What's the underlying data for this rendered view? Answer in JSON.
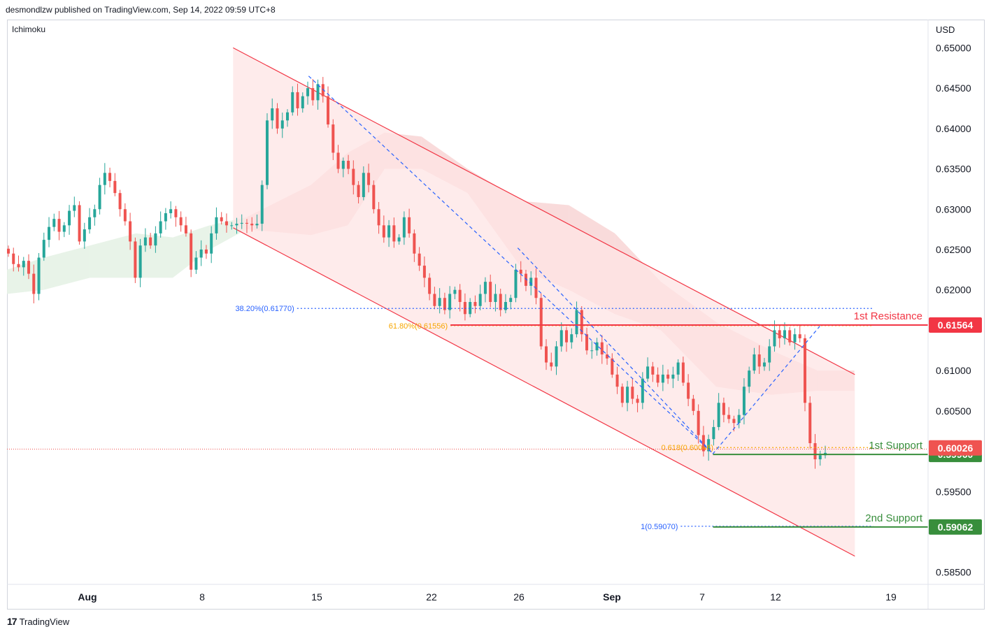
{
  "header": {
    "publisher": "desmondlzw published on TradingView.com, Sep 14, 2022 09:59 UTC+8",
    "indicator": "Ichimoku",
    "currency": "USD"
  },
  "footer": {
    "logo_mark": "17",
    "brand": "TradingView"
  },
  "colors": {
    "bull": "#26a69a",
    "bear": "#ef5350",
    "channel_fill": "#fde4e4",
    "channel_line": "#f23645",
    "resistance": "#f23645",
    "support": "#388e3c",
    "fib_blue": "#2962ff",
    "fib_orange": "#f7a600"
  },
  "chart_data": {
    "type": "candlestick",
    "title": "",
    "xlabel": "",
    "ylabel": "USD",
    "ylim": [
      0.5835,
      0.6535
    ],
    "grid": false,
    "y_ticks": [
      "0.65000",
      "0.64500",
      "0.64000",
      "0.63500",
      "0.63000",
      "0.62500",
      "0.62000",
      "0.61000",
      "0.60500",
      "0.59500",
      "0.58500"
    ],
    "x_ticks": [
      {
        "label": "Aug",
        "bold": true
      },
      {
        "label": "8",
        "bold": false
      },
      {
        "label": "15",
        "bold": false
      },
      {
        "label": "22",
        "bold": false
      },
      {
        "label": "26",
        "bold": false
      },
      {
        "label": "Sep",
        "bold": true
      },
      {
        "label": "7",
        "bold": false
      },
      {
        "label": "12",
        "bold": false
      },
      {
        "label": "19",
        "bold": false
      }
    ],
    "close_path": [
      0.6245,
      0.6232,
      0.6228,
      0.6236,
      0.622,
      0.6195,
      0.624,
      0.6262,
      0.6278,
      0.6288,
      0.6272,
      0.628,
      0.6298,
      0.6305,
      0.626,
      0.6275,
      0.629,
      0.63,
      0.633,
      0.6345,
      0.6335,
      0.632,
      0.63,
      0.6285,
      0.626,
      0.6215,
      0.6255,
      0.6265,
      0.6255,
      0.627,
      0.6285,
      0.6295,
      0.63,
      0.629,
      0.628,
      0.627,
      0.6225,
      0.624,
      0.625,
      0.6245,
      0.627,
      0.629,
      0.6285,
      0.628,
      0.628,
      0.6282,
      0.6283,
      0.6282,
      0.628,
      0.6282,
      0.633,
      0.641,
      0.6425,
      0.64,
      0.641,
      0.642,
      0.6445,
      0.6425,
      0.644,
      0.645,
      0.6435,
      0.6455,
      0.644,
      0.6405,
      0.637,
      0.635,
      0.636,
      0.635,
      0.633,
      0.6315,
      0.6345,
      0.633,
      0.63,
      0.628,
      0.6265,
      0.628,
      0.626,
      0.6265,
      0.629,
      0.627,
      0.6245,
      0.623,
      0.6215,
      0.6195,
      0.618,
      0.619,
      0.6175,
      0.6195,
      0.62,
      0.6185,
      0.617,
      0.6185,
      0.618,
      0.6195,
      0.621,
      0.6185,
      0.6195,
      0.6175,
      0.6185,
      0.619,
      0.6225,
      0.622,
      0.6205,
      0.6215,
      0.619,
      0.613,
      0.611,
      0.6105,
      0.613,
      0.615,
      0.6135,
      0.6145,
      0.6175,
      0.6145,
      0.6125,
      0.6125,
      0.6135,
      0.612,
      0.6115,
      0.6095,
      0.608,
      0.606,
      0.608,
      0.6065,
      0.606,
      0.609,
      0.6105,
      0.6095,
      0.6085,
      0.6095,
      0.609,
      0.6095,
      0.611,
      0.6085,
      0.6065,
      0.605,
      0.602,
      0.6,
      0.6015,
      0.603,
      0.606,
      0.6045,
      0.604,
      0.6035,
      0.6045,
      0.608,
      0.61,
      0.612,
      0.6105,
      0.611,
      0.613,
      0.615,
      0.614,
      0.615,
      0.6135,
      0.6145,
      0.614,
      0.606,
      0.601,
      0.599,
      0.5995,
      0.5998
    ],
    "channel": {
      "upper": {
        "x_from": 0.2455,
        "y_from": 0.65,
        "x_to": 0.9205,
        "y_to": 0.6095
      },
      "lower": {
        "x_from": 0.2455,
        "y_from": 0.6277,
        "x_to": 0.9205,
        "y_to": 0.587
      }
    },
    "ichimoku_cloud": [
      {
        "x": 0.0,
        "top": 0.6225,
        "bottom": 0.6195,
        "bull": true
      },
      {
        "x": 0.04,
        "top": 0.624,
        "bottom": 0.62,
        "bull": true
      },
      {
        "x": 0.09,
        "top": 0.6255,
        "bottom": 0.6215,
        "bull": true
      },
      {
        "x": 0.14,
        "top": 0.627,
        "bottom": 0.6215,
        "bull": true
      },
      {
        "x": 0.18,
        "top": 0.6265,
        "bottom": 0.6215,
        "bull": true
      },
      {
        "x": 0.22,
        "top": 0.628,
        "bottom": 0.625,
        "bull": true
      },
      {
        "x": 0.26,
        "top": 0.629,
        "bottom": 0.6275,
        "bull": false
      },
      {
        "x": 0.33,
        "top": 0.633,
        "bottom": 0.6268,
        "bull": false
      },
      {
        "x": 0.37,
        "top": 0.637,
        "bottom": 0.628,
        "bull": false
      },
      {
        "x": 0.41,
        "top": 0.6395,
        "bottom": 0.635,
        "bull": false
      },
      {
        "x": 0.45,
        "top": 0.639,
        "bottom": 0.635,
        "bull": false
      },
      {
        "x": 0.5,
        "top": 0.635,
        "bottom": 0.632,
        "bull": false
      },
      {
        "x": 0.56,
        "top": 0.631,
        "bottom": 0.6225,
        "bull": false
      },
      {
        "x": 0.61,
        "top": 0.6305,
        "bottom": 0.62,
        "bull": false
      },
      {
        "x": 0.66,
        "top": 0.627,
        "bottom": 0.617,
        "bull": false
      },
      {
        "x": 0.71,
        "top": 0.621,
        "bottom": 0.615,
        "bull": false
      },
      {
        "x": 0.77,
        "top": 0.616,
        "bottom": 0.608,
        "bull": false
      },
      {
        "x": 0.83,
        "top": 0.6125,
        "bottom": 0.607,
        "bull": false
      },
      {
        "x": 0.88,
        "top": 0.61,
        "bottom": 0.6075,
        "bull": false
      },
      {
        "x": 0.92,
        "top": 0.61,
        "bottom": 0.6075,
        "bull": false
      }
    ],
    "fib_levels": [
      {
        "label": "38.20%(0.61770)",
        "value": 0.6177,
        "color": "blue",
        "x_from": 0.315,
        "x_to": 0.9405
      },
      {
        "label": "61.80%(0.61556)",
        "value": 0.61556,
        "color": "orange",
        "x_from": 0.4815,
        "x_to": 0.9405
      },
      {
        "label": "0.618(0.60046)",
        "value": 0.60046,
        "color": "orange",
        "x_from": 0.77,
        "x_to": 0.9405
      },
      {
        "label": "1(0.59070)",
        "value": 0.5907,
        "color": "blue",
        "x_from": 0.7315,
        "x_to": 0.9405
      }
    ],
    "key_levels": [
      {
        "name": "1st Resistance",
        "value": "0.61564",
        "price": 0.61564,
        "kind": "resistance",
        "x_from": 0.4815
      },
      {
        "name": "1st Support",
        "value": "0.59960",
        "price": 0.5996,
        "kind": "support",
        "x_from": 0.7665
      },
      {
        "name": "2nd Support",
        "value": "0.59062",
        "price": 0.59062,
        "kind": "support",
        "x_from": 0.7665
      }
    ],
    "current_price": {
      "value": "0.60026",
      "price": 0.60026
    },
    "fib_path_1": [
      [
        0.3275,
        0.6465
      ],
      [
        0.7665,
        0.5997
      ]
    ],
    "fib_path_2": [
      [
        0.5545,
        0.6252
      ],
      [
        0.7665,
        0.5997
      ],
      [
        0.8825,
        0.6155
      ]
    ]
  }
}
